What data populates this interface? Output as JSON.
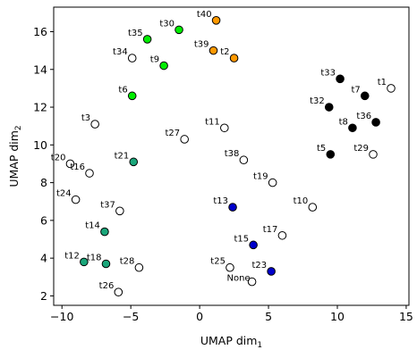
{
  "chart_data": {
    "type": "scatter",
    "title": "",
    "xlabel": "UMAP dim",
    "xlabel_sub": "1",
    "ylabel": "UMAP dim",
    "ylabel_sub": "2",
    "xlim": [
      -10.6,
      15.2
    ],
    "ylim": [
      1.5,
      17.3
    ],
    "xticks": [
      -10,
      -5,
      0,
      5,
      10,
      15
    ],
    "yticks": [
      2,
      4,
      6,
      8,
      10,
      12,
      14,
      16
    ],
    "grid": false,
    "legend": "none",
    "points": [
      {
        "label": "t1",
        "x": 13.9,
        "y": 13.0,
        "color": "#ffffff"
      },
      {
        "label": "t2",
        "x": 2.5,
        "y": 14.6,
        "color": "#ff9900"
      },
      {
        "label": "t3",
        "x": -7.6,
        "y": 11.1,
        "color": "#ffffff"
      },
      {
        "label": "t5",
        "x": 9.5,
        "y": 9.5,
        "color": "#000000"
      },
      {
        "label": "t6",
        "x": -4.9,
        "y": 12.6,
        "color": "#00ee00"
      },
      {
        "label": "t7",
        "x": 12.0,
        "y": 12.6,
        "color": "#000000"
      },
      {
        "label": "t8",
        "x": 11.1,
        "y": 10.9,
        "color": "#000000"
      },
      {
        "label": "t9",
        "x": -2.6,
        "y": 14.2,
        "color": "#00ee00"
      },
      {
        "label": "t10",
        "x": 8.2,
        "y": 6.7,
        "color": "#ffffff"
      },
      {
        "label": "t11",
        "x": 1.8,
        "y": 10.9,
        "color": "#ffffff"
      },
      {
        "label": "t12",
        "x": -8.4,
        "y": 3.8,
        "color": "#1aa67a"
      },
      {
        "label": "t13",
        "x": 2.4,
        "y": 6.7,
        "color": "#0000cc"
      },
      {
        "label": "t14",
        "x": -6.9,
        "y": 5.4,
        "color": "#1aa67a"
      },
      {
        "label": "t15",
        "x": 3.9,
        "y": 4.7,
        "color": "#0000cc"
      },
      {
        "label": "t16",
        "x": -8.0,
        "y": 8.5,
        "color": "#ffffff"
      },
      {
        "label": "t17",
        "x": 6.0,
        "y": 5.2,
        "color": "#ffffff"
      },
      {
        "label": "t18",
        "x": -6.8,
        "y": 3.7,
        "color": "#1aa67a"
      },
      {
        "label": "t19",
        "x": 5.3,
        "y": 8.0,
        "color": "#ffffff"
      },
      {
        "label": "t20",
        "x": -9.4,
        "y": 9.0,
        "color": "#ffffff"
      },
      {
        "label": "t21",
        "x": -4.8,
        "y": 9.1,
        "color": "#1aa67a"
      },
      {
        "label": "t23",
        "x": 5.2,
        "y": 3.3,
        "color": "#0000cc"
      },
      {
        "label": "t24",
        "x": -9.0,
        "y": 7.1,
        "color": "#ffffff"
      },
      {
        "label": "t25",
        "x": 2.2,
        "y": 3.5,
        "color": "#ffffff"
      },
      {
        "label": "t26",
        "x": -5.9,
        "y": 2.2,
        "color": "#ffffff"
      },
      {
        "label": "t27",
        "x": -1.1,
        "y": 10.3,
        "color": "#ffffff"
      },
      {
        "label": "t28",
        "x": -4.4,
        "y": 3.5,
        "color": "#ffffff"
      },
      {
        "label": "t29",
        "x": 12.6,
        "y": 9.5,
        "color": "#ffffff"
      },
      {
        "label": "t30",
        "x": -1.5,
        "y": 16.1,
        "color": "#00ee00"
      },
      {
        "label": "t32",
        "x": 9.4,
        "y": 12.0,
        "color": "#000000"
      },
      {
        "label": "t33",
        "x": 10.2,
        "y": 13.5,
        "color": "#000000"
      },
      {
        "label": "t34",
        "x": -4.9,
        "y": 14.6,
        "color": "#ffffff"
      },
      {
        "label": "t35",
        "x": -3.8,
        "y": 15.6,
        "color": "#00ee00"
      },
      {
        "label": "t36",
        "x": 12.8,
        "y": 11.2,
        "color": "#000000"
      },
      {
        "label": "t37",
        "x": -5.8,
        "y": 6.5,
        "color": "#ffffff"
      },
      {
        "label": "t38",
        "x": 3.2,
        "y": 9.2,
        "color": "#ffffff"
      },
      {
        "label": "t39",
        "x": 1.0,
        "y": 15.0,
        "color": "#ff9900"
      },
      {
        "label": "t40",
        "x": 1.2,
        "y": 16.6,
        "color": "#ff9900"
      },
      {
        "label": "None",
        "x": 3.8,
        "y": 2.75,
        "color": "#ffffff"
      }
    ]
  }
}
